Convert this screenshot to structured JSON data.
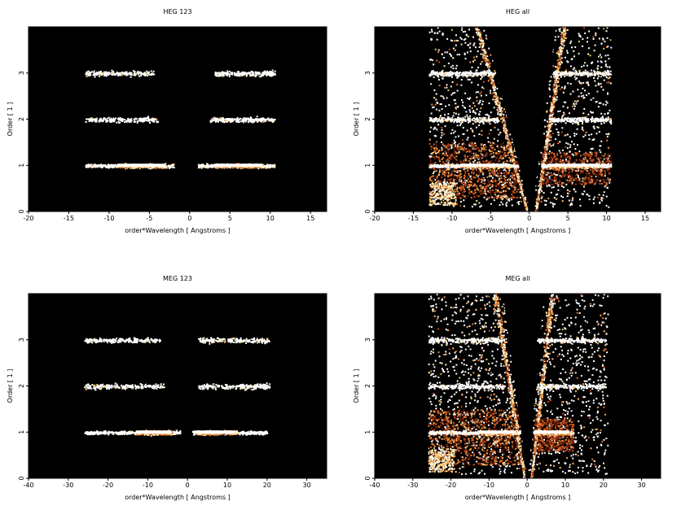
{
  "chart_data": [
    {
      "type": "heatmap",
      "title": "HEG 123",
      "xlabel": "order*Wavelength [ Angstroms ]",
      "ylabel": "Order [ 1 ]",
      "xlim": [
        -20,
        17
      ],
      "ylim": [
        0,
        4
      ],
      "xticks": [
        -20,
        -15,
        -10,
        -5,
        0,
        5,
        10,
        15
      ],
      "yticks": [
        0,
        1,
        2,
        3
      ],
      "background": "#000000",
      "series": [
        {
          "order": 1,
          "ranges": [
            [
              -13,
              -2
            ],
            [
              1,
              10.5
            ]
          ],
          "center": [
            -6.5,
            5.5
          ],
          "peak": [
            [
              -9,
              -3
            ],
            [
              3,
              9
            ]
          ]
        },
        {
          "order": 2,
          "ranges": [
            [
              -13,
              -4
            ],
            [
              2.5,
              10.5
            ]
          ]
        },
        {
          "order": 3,
          "ranges": [
            [
              -13,
              -4.5
            ],
            [
              3,
              10.5
            ]
          ]
        }
      ]
    },
    {
      "type": "heatmap",
      "title": "HEG all",
      "xlabel": "order*Wavelength [ Angstroms ]",
      "ylabel": "Order [ 1 ]",
      "xlim": [
        -20,
        17
      ],
      "ylim": [
        0,
        4
      ],
      "xticks": [
        -20,
        -15,
        -10,
        -5,
        0,
        5,
        10,
        15
      ],
      "yticks": [
        0,
        1,
        2,
        3
      ],
      "background": "#000000",
      "series": [
        {
          "order": 1,
          "ranges": [
            [
              -13,
              -1.5
            ],
            [
              1.5,
              10.5
            ]
          ],
          "peak": [
            [
              -9,
              -2.5
            ],
            [
              2.5,
              9
            ]
          ]
        },
        {
          "order": 2,
          "ranges": [
            [
              -13,
              -4
            ],
            [
              2.5,
              10.5
            ]
          ]
        },
        {
          "order": 3,
          "ranges": [
            [
              -13,
              -4.5
            ],
            [
              3,
              10.5
            ]
          ]
        }
      ],
      "zero_order_streaks": [
        {
          "x0": -0.3,
          "y0": 0,
          "x1": -6.8,
          "y1": 4
        },
        {
          "x0": 0.8,
          "y0": 0,
          "x1": 4.5,
          "y1": 4
        }
      ]
    },
    {
      "type": "heatmap",
      "title": "MEG 123",
      "xlabel": "order*Wavelength [ Angstroms ]",
      "ylabel": "Order [ 1 ]",
      "xlim": [
        -40,
        35
      ],
      "ylim": [
        0,
        4
      ],
      "xticks": [
        -40,
        -30,
        -20,
        -10,
        0,
        10,
        20,
        30
      ],
      "yticks": [
        0,
        1,
        2,
        3
      ],
      "background": "#000000",
      "series": [
        {
          "order": 1,
          "ranges": [
            [
              -26,
              -2
            ],
            [
              1,
              20
            ]
          ],
          "peak": [
            [
              -13,
              -4
            ],
            [
              2,
              12
            ]
          ]
        },
        {
          "order": 2,
          "ranges": [
            [
              -26,
              -6
            ],
            [
              2.5,
              20.5
            ]
          ]
        },
        {
          "order": 3,
          "ranges": [
            [
              -26,
              -7
            ],
            [
              2.5,
              20.5
            ]
          ]
        }
      ]
    },
    {
      "type": "heatmap",
      "title": "MEG all",
      "xlabel": "order*Wavelength [ Angstroms ]",
      "ylabel": "Order [ 1 ]",
      "xlim": [
        -40,
        35
      ],
      "ylim": [
        0,
        4
      ],
      "xticks": [
        -40,
        -30,
        -20,
        -10,
        0,
        10,
        20,
        30
      ],
      "yticks": [
        0,
        1,
        2,
        3
      ],
      "background": "#000000",
      "series": [
        {
          "order": 1,
          "ranges": [
            [
              -26,
              -2
            ],
            [
              1.5,
              12
            ]
          ],
          "peak": [
            [
              -13,
              -3
            ],
            [
              2,
              11
            ]
          ]
        },
        {
          "order": 2,
          "ranges": [
            [
              -26,
              -6
            ],
            [
              2.5,
              20.5
            ]
          ]
        },
        {
          "order": 3,
          "ranges": [
            [
              -26,
              -7
            ],
            [
              2.5,
              20.5
            ]
          ]
        }
      ],
      "zero_order_streaks": [
        {
          "x0": -0.8,
          "y0": 0,
          "x1": -8.5,
          "y1": 4
        },
        {
          "x0": 1.0,
          "y0": 0,
          "x1": 6.5,
          "y1": 4
        }
      ]
    }
  ]
}
